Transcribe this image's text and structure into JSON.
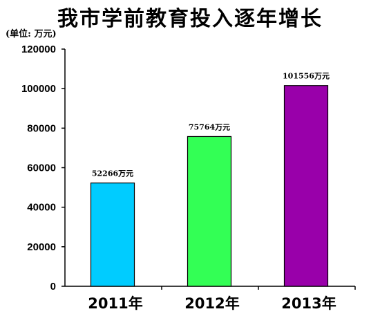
{
  "chart_data": {
    "type": "bar",
    "title": "我市学前教育投入逐年增长",
    "unit_label": "(单位: 万元)",
    "categories": [
      "2011年",
      "2012年",
      "2013年"
    ],
    "values": [
      52266,
      75764,
      101556
    ],
    "data_labels": [
      "52266万元",
      "75764万元",
      "101556万元"
    ],
    "bar_colors": [
      "#00ccff",
      "#33ff55",
      "#9900aa"
    ],
    "ylim": [
      0,
      120000
    ],
    "yticks": [
      0,
      20000,
      40000,
      60000,
      80000,
      100000,
      120000
    ],
    "ytick_labels": [
      "0",
      "20000",
      "40000",
      "60000",
      "80000",
      "100000",
      "120000"
    ],
    "grid": false,
    "legend": "none"
  }
}
